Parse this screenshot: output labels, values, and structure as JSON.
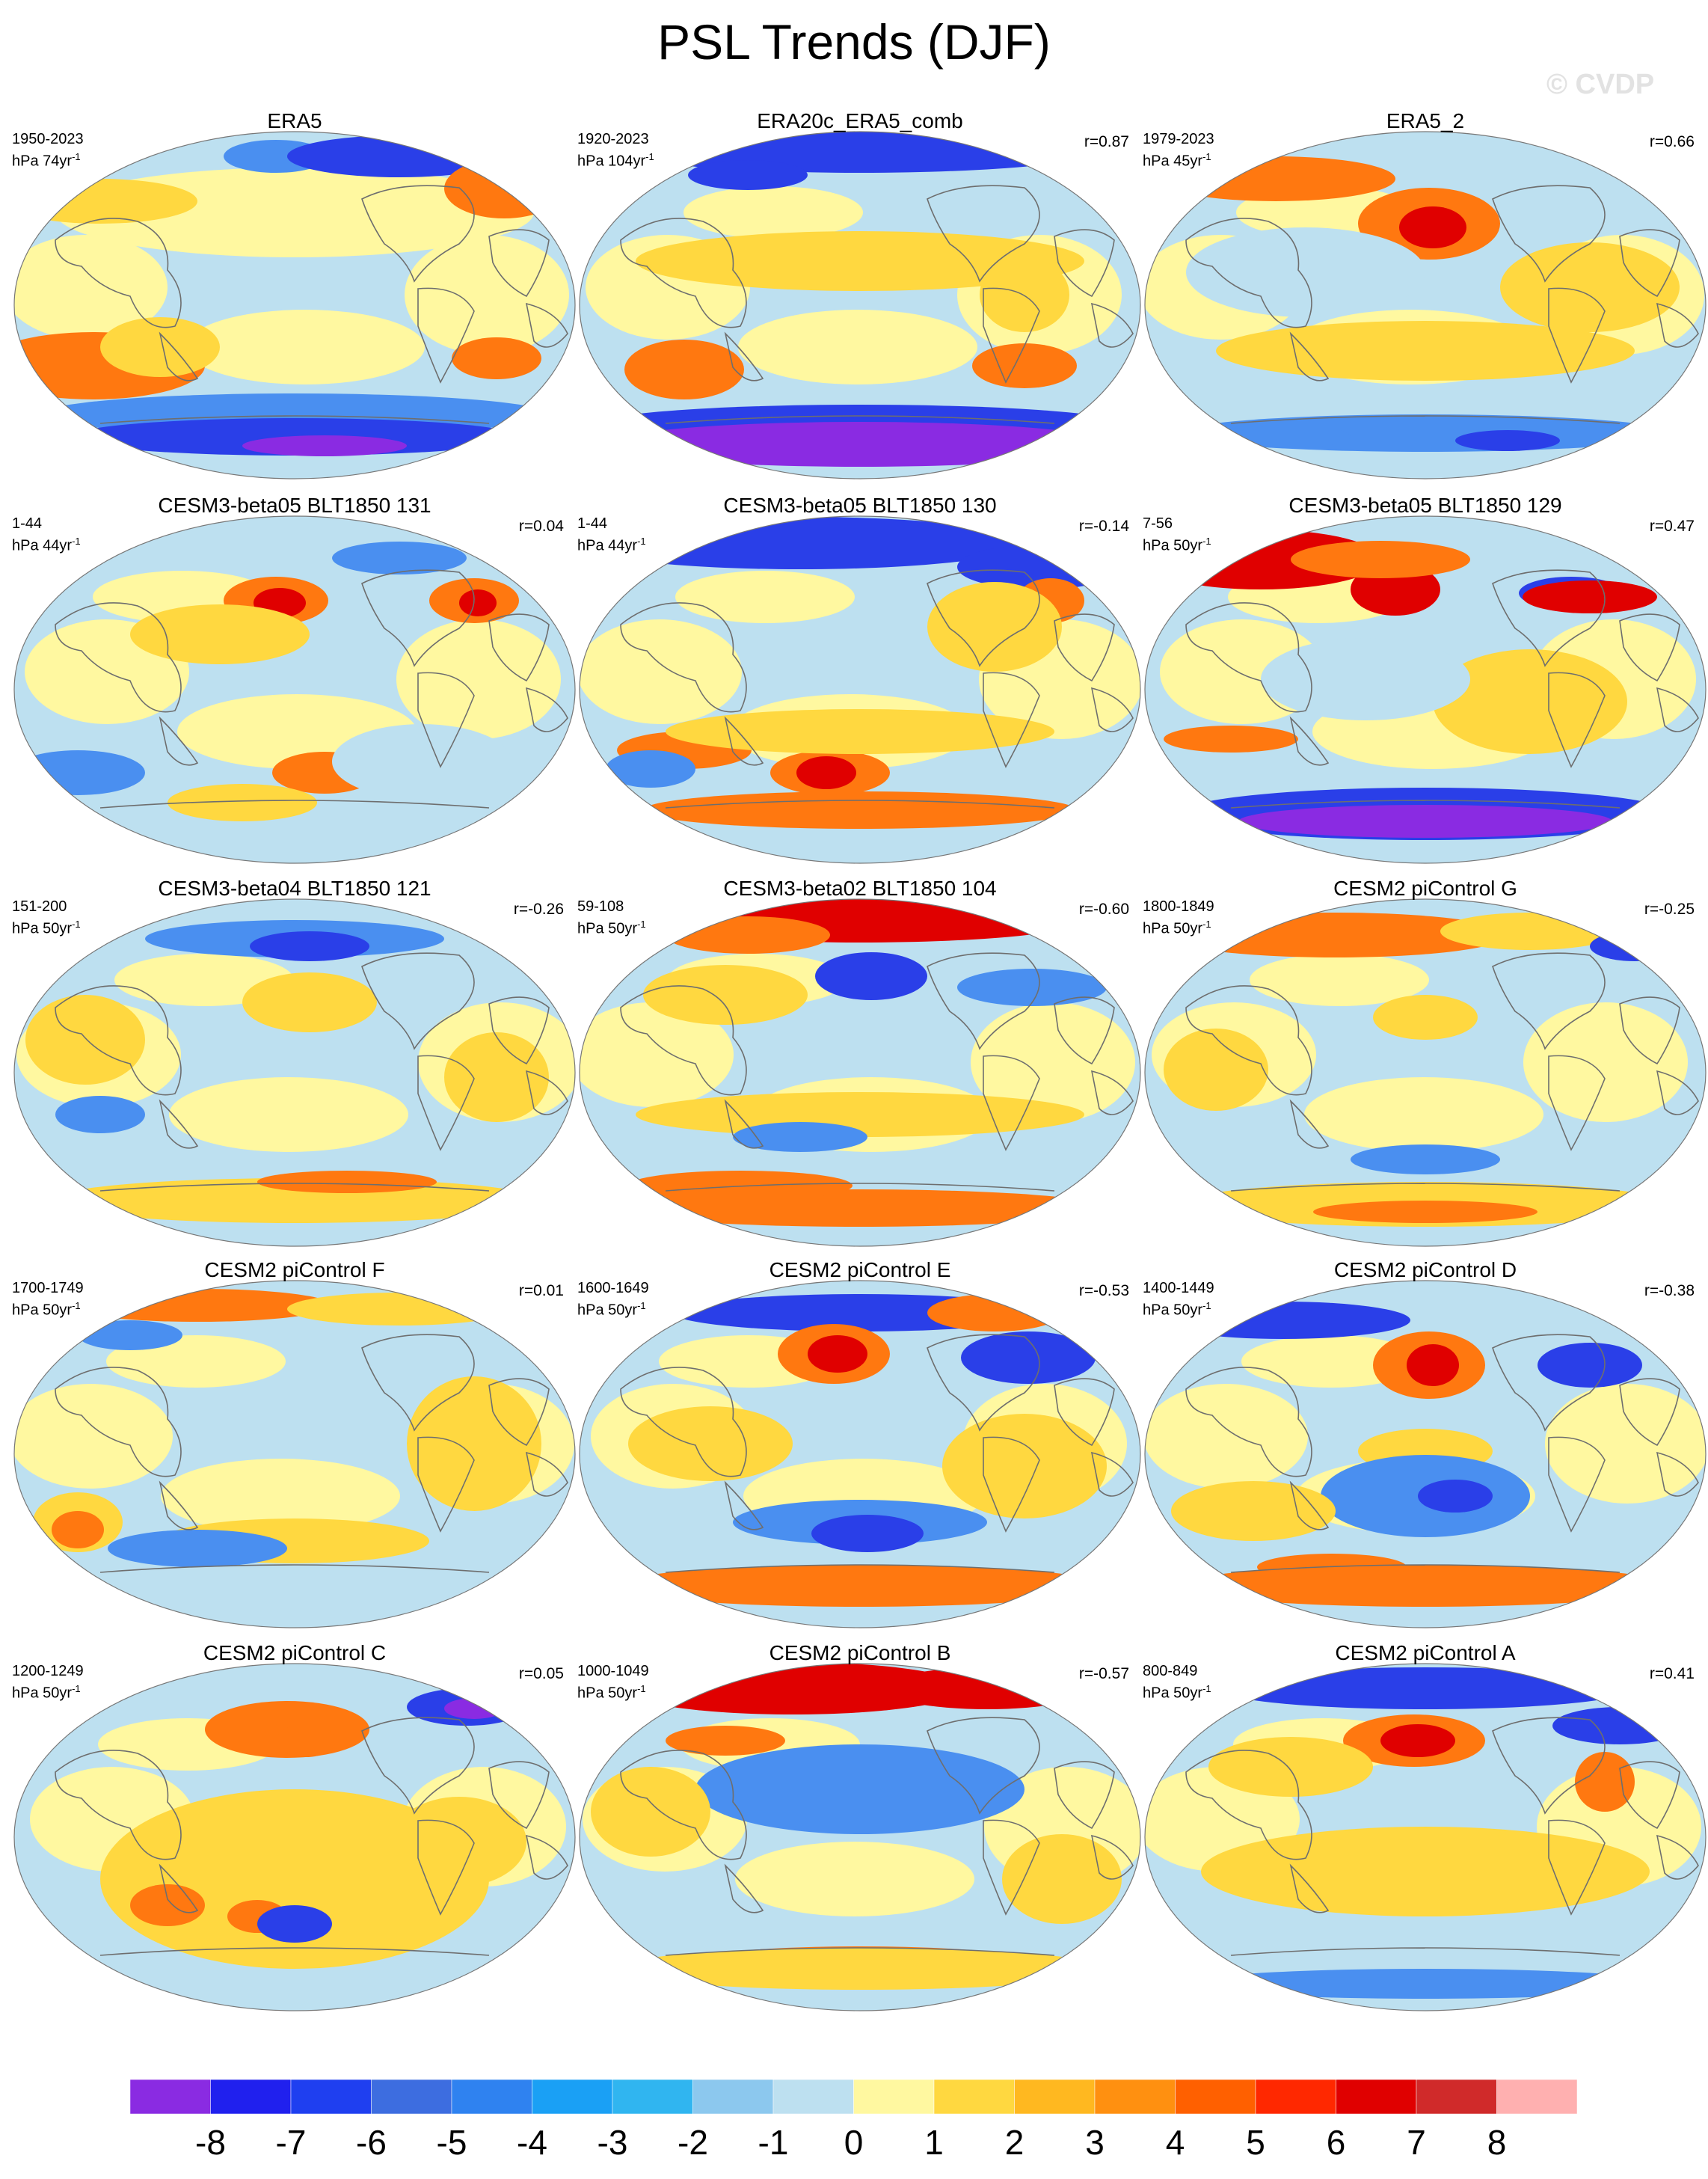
{
  "title": "PSL Trends (DJF)",
  "watermark": "© CVDP",
  "colorbar": {
    "levels": [
      "-8",
      "-7",
      "-6",
      "-5",
      "-4",
      "-3",
      "-2",
      "-1",
      "0",
      "1",
      "2",
      "3",
      "4",
      "5",
      "6",
      "7",
      "8"
    ],
    "colors": [
      "#8a2be2",
      "#2020ee",
      "#1f3ff0",
      "#3d6de0",
      "#2f82f0",
      "#1aa0f5",
      "#30b5f0",
      "#8cc8ee",
      "#bde0f0",
      "#fff8a0",
      "#ffd840",
      "#ffb820",
      "#ff9010",
      "#ff6000",
      "#ff2800",
      "#e00000",
      "#d02a2a",
      "#ffb0b0"
    ]
  },
  "palette": {
    "strong_neg": "#2a3fe8",
    "neg": "#4a8ff0",
    "weak_neg": "#bde0f0",
    "weak_pos": "#fff8a0",
    "pos": "#ffd840",
    "strong_pos": "#ff7810",
    "extreme_pos": "#e00000",
    "extreme_neg": "#8a2be2",
    "coast": "#6e6e6e"
  },
  "panels": [
    {
      "title": "ERA5",
      "period": "1950-2023",
      "units": "hPa 74yr",
      "units_sup": "-1",
      "corr": ""
    },
    {
      "title": "ERA20c_ERA5_comb",
      "period": "1920-2023",
      "units": "hPa 104yr",
      "units_sup": "-1",
      "corr": "r=0.87"
    },
    {
      "title": "ERA5_2",
      "period": "1979-2023",
      "units": "hPa 45yr",
      "units_sup": "-1",
      "corr": "r=0.66"
    },
    {
      "title": "CESM3-beta05 BLT1850 131",
      "period": "1-44",
      "units": "hPa 44yr",
      "units_sup": "-1",
      "corr": "r=0.04"
    },
    {
      "title": "CESM3-beta05 BLT1850 130",
      "period": "1-44",
      "units": "hPa 44yr",
      "units_sup": "-1",
      "corr": "r=-0.14"
    },
    {
      "title": "CESM3-beta05 BLT1850 129",
      "period": "7-56",
      "units": "hPa 50yr",
      "units_sup": "-1",
      "corr": "r=0.47"
    },
    {
      "title": "CESM3-beta04 BLT1850 121",
      "period": "151-200",
      "units": "hPa 50yr",
      "units_sup": "-1",
      "corr": "r=-0.26"
    },
    {
      "title": "CESM3-beta02 BLT1850 104",
      "period": "59-108",
      "units": "hPa 50yr",
      "units_sup": "-1",
      "corr": "r=-0.60"
    },
    {
      "title": "CESM2 piControl G",
      "period": "1800-1849",
      "units": "hPa 50yr",
      "units_sup": "-1",
      "corr": "r=-0.25"
    },
    {
      "title": "CESM2 piControl F",
      "period": "1700-1749",
      "units": "hPa 50yr",
      "units_sup": "-1",
      "corr": "r=0.01"
    },
    {
      "title": "CESM2 piControl E",
      "period": "1600-1649",
      "units": "hPa 50yr",
      "units_sup": "-1",
      "corr": "r=-0.53"
    },
    {
      "title": "CESM2 piControl D",
      "period": "1400-1449",
      "units": "hPa 50yr",
      "units_sup": "-1",
      "corr": "r=-0.38"
    },
    {
      "title": "CESM2 piControl C",
      "period": "1200-1249",
      "units": "hPa 50yr",
      "units_sup": "-1",
      "corr": "r=0.05"
    },
    {
      "title": "CESM2 piControl B",
      "period": "1000-1049",
      "units": "hPa 50yr",
      "units_sup": "-1",
      "corr": "r=-0.57"
    },
    {
      "title": "CESM2 piControl A",
      "period": "800-849",
      "units": "hPa 50yr",
      "units_sup": "-1",
      "corr": "r=0.41"
    }
  ]
}
